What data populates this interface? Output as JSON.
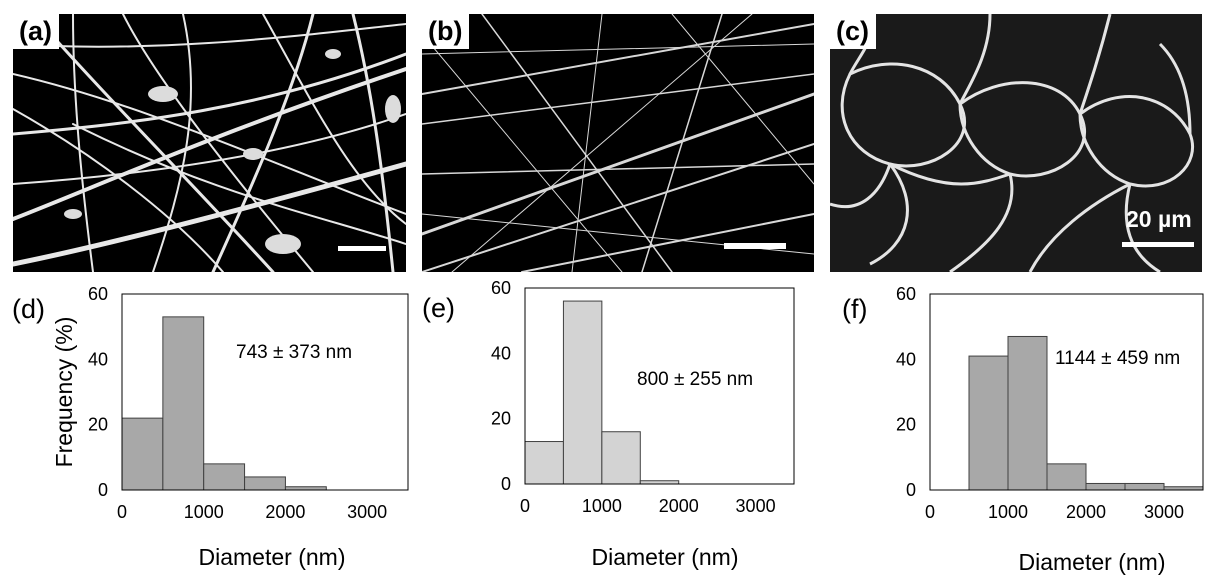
{
  "panels": {
    "a": {
      "label": "(a)"
    },
    "b": {
      "label": "(b)"
    },
    "c": {
      "label": "(c)",
      "scale_bar": "20 µm"
    }
  },
  "chart_data": [
    {
      "type": "bar",
      "panel_label": "(d)",
      "xlabel": "Diameter (nm)",
      "ylabel": "Frequency (%)",
      "bin_edges": [
        0,
        500,
        1000,
        1500,
        2000,
        2500,
        3000,
        3500
      ],
      "values": [
        22,
        53,
        8,
        4,
        1,
        0,
        0
      ],
      "xlim": [
        0,
        3500
      ],
      "ylim": [
        0,
        60
      ],
      "xticks": [
        0,
        1000,
        2000,
        3000
      ],
      "yticks": [
        0,
        20,
        40,
        60
      ],
      "annotation": "743 ± 373 nm",
      "bar_color": "#a8a8a8",
      "grid": false
    },
    {
      "type": "bar",
      "panel_label": "(e)",
      "xlabel": "Diameter (nm)",
      "ylabel": "",
      "bin_edges": [
        0,
        500,
        1000,
        1500,
        2000,
        2500,
        3000,
        3500
      ],
      "values": [
        13,
        56,
        16,
        1,
        0,
        0,
        0
      ],
      "xlim": [
        0,
        3500
      ],
      "ylim": [
        0,
        60
      ],
      "xticks": [
        0,
        1000,
        2000,
        3000
      ],
      "yticks": [
        0,
        20,
        40,
        60
      ],
      "annotation": "800 ± 255 nm",
      "bar_color": "#d3d3d3",
      "grid": false
    },
    {
      "type": "bar",
      "panel_label": "(f)",
      "xlabel": "Diameter (nm)",
      "ylabel": "",
      "bin_edges": [
        0,
        500,
        1000,
        1500,
        2000,
        2500,
        3000,
        3500
      ],
      "values": [
        0,
        41,
        47,
        8,
        2,
        2,
        1
      ],
      "xlim": [
        0,
        3500
      ],
      "ylim": [
        0,
        60
      ],
      "xticks": [
        0,
        1000,
        2000,
        3000
      ],
      "yticks": [
        0,
        20,
        40,
        60
      ],
      "annotation": "1144 ± 459 nm",
      "bar_color": "#a8a8a8",
      "grid": false
    }
  ]
}
